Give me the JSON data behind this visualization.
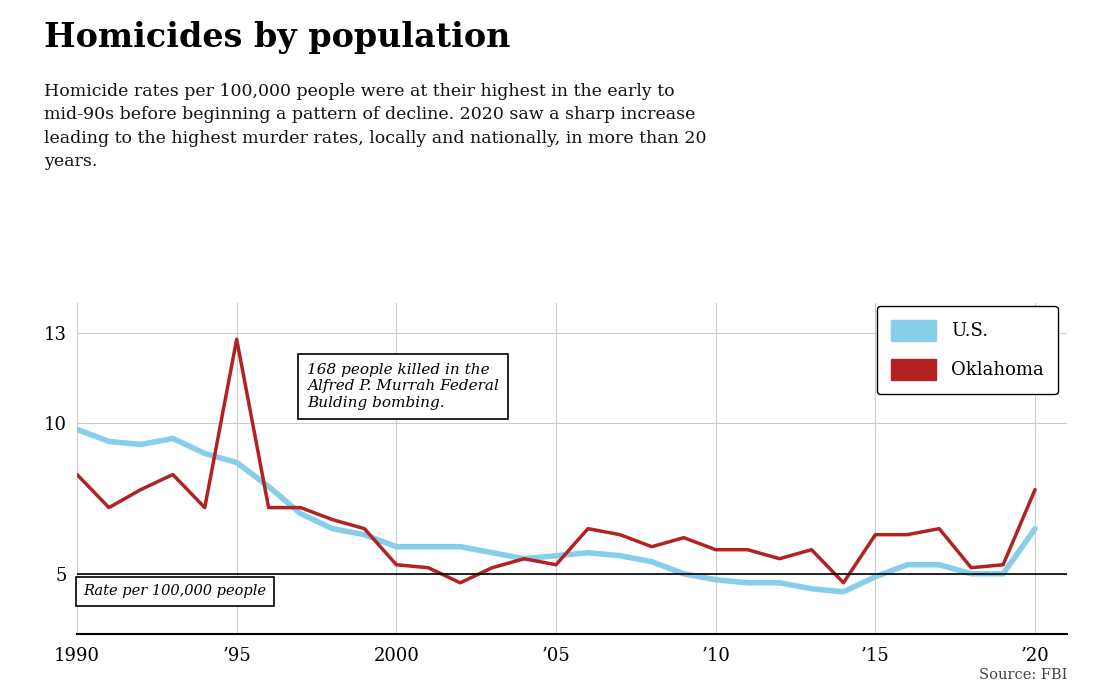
{
  "title": "Homicides by population",
  "subtitle": "Homicide rates per 100,000 people were at their highest in the early to\nmid-90s before beginning a pattern of decline. 2020 saw a sharp increase\nleading to the highest murder rates, locally and nationally, in more than 20\nyears.",
  "source": "Source: FBI",
  "years": [
    1990,
    1991,
    1992,
    1993,
    1994,
    1995,
    1996,
    1997,
    1998,
    1999,
    2000,
    2001,
    2002,
    2003,
    2004,
    2005,
    2006,
    2007,
    2008,
    2009,
    2010,
    2011,
    2012,
    2013,
    2014,
    2015,
    2016,
    2017,
    2018,
    2019,
    2020
  ],
  "us_data": [
    9.8,
    9.4,
    9.3,
    9.5,
    9.0,
    8.7,
    7.9,
    7.0,
    6.5,
    6.3,
    5.9,
    5.9,
    5.9,
    5.7,
    5.5,
    5.6,
    5.7,
    5.6,
    5.4,
    5.0,
    4.8,
    4.7,
    4.7,
    4.5,
    4.4,
    4.9,
    5.3,
    5.3,
    5.0,
    5.0,
    6.5
  ],
  "ok_data": [
    8.3,
    7.2,
    7.8,
    8.3,
    7.2,
    12.8,
    7.2,
    7.2,
    6.8,
    6.5,
    5.3,
    5.2,
    4.7,
    5.2,
    5.5,
    5.3,
    6.5,
    6.3,
    5.9,
    6.2,
    5.8,
    5.8,
    5.5,
    5.8,
    4.7,
    6.3,
    6.3,
    6.5,
    5.2,
    5.3,
    7.8
  ],
  "us_color": "#87CEEB",
  "ok_color": "#B22222",
  "annotation_text": "168 people killed in the\nAlfred P. Murrah Federal\nBulding bombing.",
  "rate_label": "Rate per 100,000 people",
  "ylim_bottom": 3.0,
  "ylim_top": 14.0,
  "yticks": [
    5,
    10,
    13
  ],
  "xlim_left": 1990,
  "xlim_right": 2021,
  "xtick_positions": [
    1990,
    1995,
    2000,
    2005,
    2010,
    2015,
    2020
  ],
  "xtick_labels": [
    "1990",
    "’95",
    "2000",
    "’05",
    "’10",
    "’15",
    "’20"
  ],
  "background_color": "#ffffff",
  "grid_color": "#cccccc",
  "legend_labels": [
    "U.S.",
    "Oklahoma"
  ]
}
